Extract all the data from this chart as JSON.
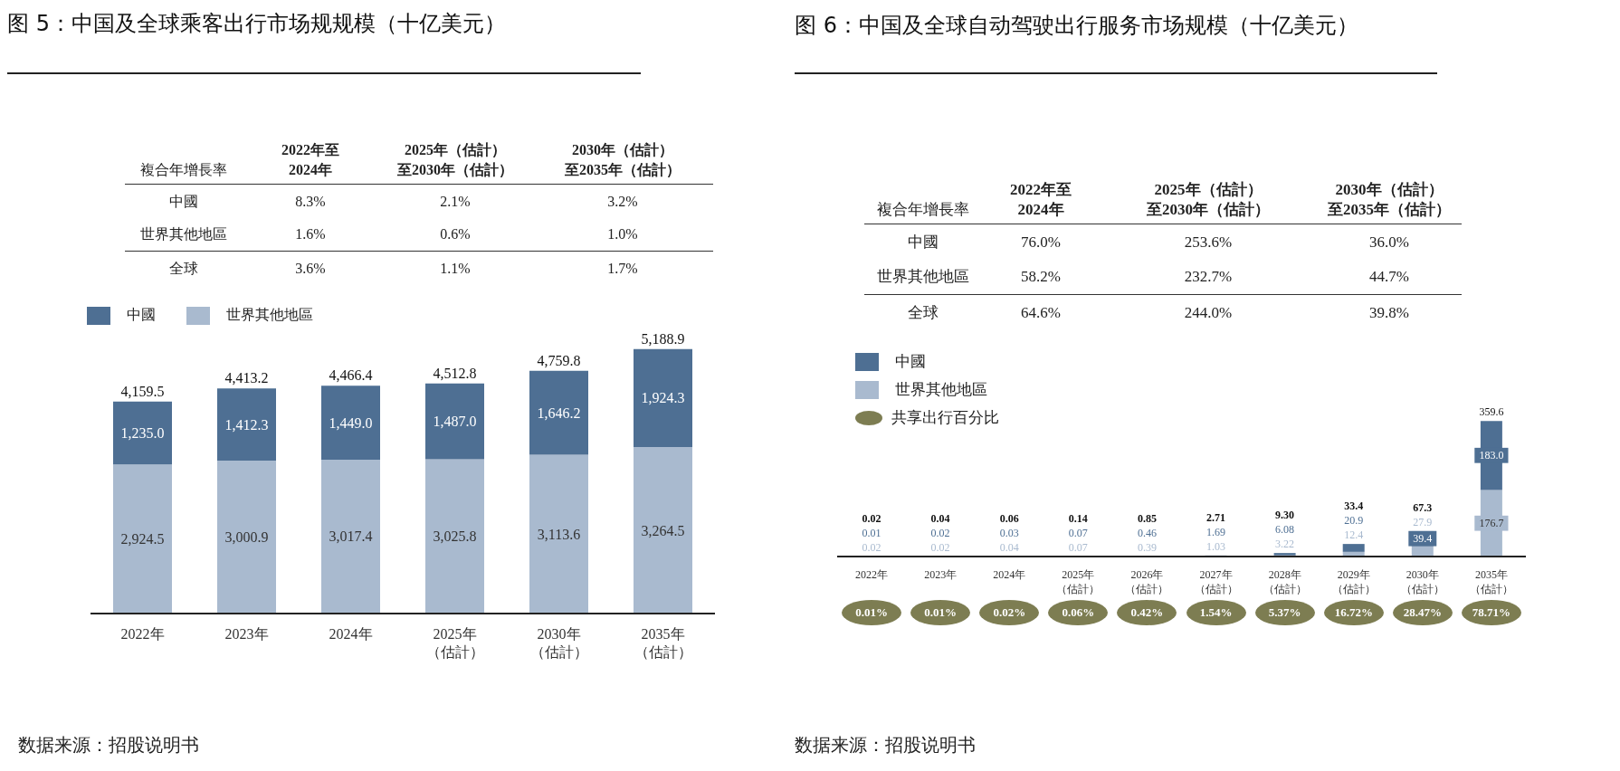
{
  "chart_data": [
    {
      "type": "bar",
      "title": "图 5：中国及全球乘客出行市场规规模（十亿美元）",
      "stacked": true,
      "legend": "top left",
      "tick_labels": "x",
      "ylim": [
        0,
        5200
      ],
      "categories": [
        "2022年",
        "2023年",
        "2024年",
        "2025年（估計）",
        "2030年（估計）",
        "2035年（估計）"
      ],
      "series": [
        {
          "name": "世界其他地區",
          "color": "#a9bacf",
          "values": [
            2924.5,
            3000.9,
            3017.4,
            3025.8,
            3113.6,
            3264.5
          ],
          "value_labels": [
            "2,924.5",
            "3,000.9",
            "3,017.4",
            "3,025.8",
            "3,113.6",
            "3,264.5"
          ]
        },
        {
          "name": "中國",
          "color": "#4e6f93",
          "values": [
            1235.0,
            1412.3,
            1449.0,
            1487.0,
            1646.2,
            1924.3
          ],
          "value_labels": [
            "1,235.0",
            "1,412.3",
            "1,449.0",
            "1,487.0",
            "1,646.2",
            "1,924.3"
          ]
        }
      ],
      "totals": [
        "4,159.5",
        "4,413.2",
        "4,466.4",
        "4,512.8",
        "4,759.8",
        "5,188.9"
      ],
      "annotations": [
        "複合年增長率",
        "2022年至2024年",
        "2025年（估計）至2030年（估計）",
        "2030年（估計）至2035年（估計）",
        "中國",
        "8.3%",
        "2.1%",
        "3.2%",
        "世界其他地區",
        "1.6%",
        "0.6%",
        "1.0%",
        "全球",
        "3.6%",
        "1.1%",
        "1.7%",
        "数据来源：招股说明书"
      ]
    },
    {
      "type": "bar",
      "title": "图 6：中国及全球自动驾驶出行服务市场规模（十亿美元）",
      "stacked": true,
      "legend": "top left",
      "tick_labels": "x",
      "ylim": [
        0,
        360
      ],
      "categories": [
        "2022年",
        "2023年",
        "2024年",
        "2025年（估計）",
        "2026年（估計）",
        "2027年（估計）",
        "2028年（估計）",
        "2029年（估計）",
        "2030年（估計）",
        "2035年（估計）"
      ],
      "series": [
        {
          "name": "世界其他地區",
          "color": "#a9bacf",
          "values": [
            0.02,
            0.02,
            0.04,
            0.07,
            0.39,
            1.03,
            3.22,
            12.4,
            27.9,
            176.7
          ],
          "value_labels": [
            "0.02",
            "0.02",
            "0.04",
            "0.07",
            "0.39",
            "1.03",
            "3.22",
            "12.4",
            "27.9",
            "176.7"
          ]
        },
        {
          "name": "中國",
          "color": "#4e6f93",
          "values": [
            0.01,
            0.02,
            0.03,
            0.07,
            0.46,
            1.69,
            6.08,
            20.9,
            39.4,
            183.0
          ],
          "value_labels": [
            "0.01",
            "0.02",
            "0.03",
            "0.07",
            "0.46",
            "1.69",
            "6.08",
            "20.9",
            "39.4",
            "183.0"
          ]
        }
      ],
      "totals": [
        "0.02",
        "0.04",
        "0.06",
        "0.14",
        "0.85",
        "2.71",
        "9.30",
        "33.4",
        "67.3",
        "359.6"
      ],
      "annotations": [
        "複合年增長率",
        "2022年至2024年",
        "2025年（估計）至2030年（估計）",
        "2030年（估計）至2035年（估計）",
        "中國",
        "76.0%",
        "253.6%",
        "36.0%",
        "世界其他地區",
        "58.2%",
        "232.7%",
        "44.7%",
        "全球",
        "64.6%",
        "244.0%",
        "39.8%",
        "共享出行百分比",
        "0.01%",
        "0.01%",
        "0.02%",
        "0.06%",
        "0.42%",
        "1.54%",
        "5.37%",
        "16.72%",
        "28.47%",
        "78.71%",
        "数据来源：招股说明书"
      ]
    }
  ]
}
